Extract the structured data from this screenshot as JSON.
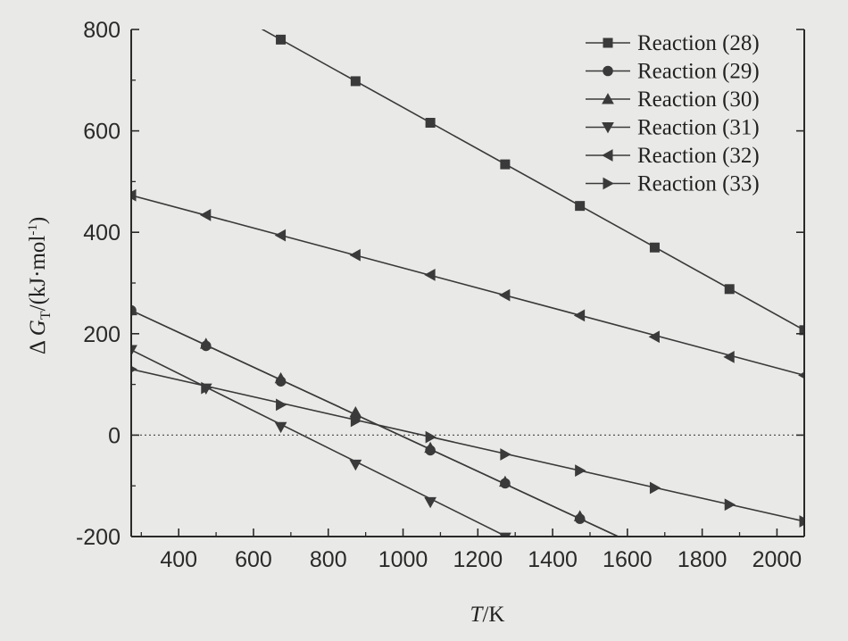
{
  "chart_data": {
    "type": "line",
    "xlabel": "T/K",
    "xlabel_italic": "T",
    "xlabel_rest": "/K",
    "ylabel": "Δ G_T/(kJ·mol⁻¹)",
    "ylabel_prefix": "Δ ",
    "ylabel_symbol": "G",
    "ylabel_subscript": "T",
    "ylabel_suffix": "/(kJ·mol",
    "ylabel_superscript": "-1",
    "ylabel_close": ")",
    "xlim": [
      273,
      2073
    ],
    "ylim": [
      -200,
      800
    ],
    "xticks": [
      400,
      600,
      800,
      1000,
      1200,
      1400,
      1600,
      1800,
      2000
    ],
    "yticks": [
      -200,
      0,
      200,
      400,
      600,
      800
    ],
    "zero_line": true,
    "grid": false,
    "legend_position": "top-right",
    "series": [
      {
        "name": "Reaction (28)",
        "marker": "square",
        "x": [
          673,
          873,
          1073,
          1273,
          1473,
          1673,
          1873,
          2073
        ],
        "y": [
          780,
          698,
          616,
          534,
          452,
          370,
          288,
          207
        ],
        "line_x": [
          600,
          2073
        ],
        "line_y": [
          810,
          207
        ]
      },
      {
        "name": "Reaction (29)",
        "marker": "circle",
        "x": [
          273,
          473,
          673,
          873,
          1073,
          1273,
          1473
        ],
        "y": [
          246,
          176,
          106,
          36,
          -30,
          -95,
          -165
        ],
        "line_x": [
          273,
          1590
        ],
        "line_y": [
          246,
          -205
        ]
      },
      {
        "name": "Reaction (30)",
        "marker": "triangle-up",
        "x": [
          273,
          473,
          673,
          873,
          1073,
          1273,
          1473
        ],
        "y": [
          246,
          180,
          112,
          45,
          -25,
          -92,
          -160
        ],
        "line_x": [
          273,
          1590
        ],
        "line_y": [
          246,
          -205
        ]
      },
      {
        "name": "Reaction (31)",
        "marker": "triangle-down",
        "x": [
          273,
          473,
          673,
          873,
          1073,
          1273
        ],
        "y": [
          168,
          92,
          16,
          -58,
          -132,
          -202
        ],
        "line_x": [
          273,
          1290
        ],
        "line_y": [
          168,
          -205
        ]
      },
      {
        "name": "Reaction (32)",
        "marker": "triangle-left",
        "x": [
          273,
          473,
          673,
          873,
          1073,
          1273,
          1473,
          1673,
          1873,
          2073
        ],
        "y": [
          473,
          434,
          394,
          355,
          316,
          276,
          236,
          194,
          154,
          118
        ],
        "line_x": [
          273,
          2073
        ],
        "line_y": [
          473,
          118
        ]
      },
      {
        "name": "Reaction (33)",
        "marker": "triangle-right",
        "x": [
          273,
          473,
          673,
          873,
          1073,
          1273,
          1473,
          1673,
          1873,
          2073
        ],
        "y": [
          130,
          93,
          60,
          28,
          -4,
          -38,
          -70,
          -104,
          -137,
          -170
        ],
        "line_x": [
          273,
          2073
        ],
        "line_y": [
          130,
          -170
        ]
      }
    ]
  }
}
